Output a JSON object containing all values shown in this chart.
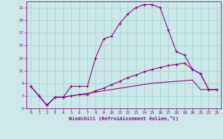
{
  "xlabel": "Windchill (Refroidissement éolien,°C)",
  "background_color": "#cce8e8",
  "grid_color": "#99cccc",
  "line_color": "#880088",
  "xlim": [
    -0.5,
    23.5
  ],
  "ylim": [
    5,
    22
  ],
  "yticks": [
    5,
    7,
    9,
    11,
    13,
    15,
    17,
    19,
    21
  ],
  "xticks": [
    0,
    1,
    2,
    3,
    4,
    5,
    6,
    7,
    8,
    9,
    10,
    11,
    12,
    13,
    14,
    15,
    16,
    17,
    18,
    19,
    20,
    21,
    22,
    23
  ],
  "series1_x": [
    0,
    1,
    2,
    3,
    4,
    5,
    6,
    7,
    8,
    9,
    10,
    11,
    12,
    13,
    14,
    15,
    16,
    17,
    18,
    19,
    20,
    21,
    22,
    23
  ],
  "series1_y": [
    8.5,
    7.0,
    5.5,
    6.8,
    6.8,
    8.5,
    8.5,
    8.5,
    13.0,
    16.0,
    16.5,
    18.5,
    20.0,
    21.0,
    21.5,
    21.5,
    21.0,
    17.5,
    14.0,
    13.5,
    11.2,
    10.5,
    8.0,
    8.0
  ],
  "series2_x": [
    0,
    1,
    2,
    3,
    4,
    5,
    6,
    7,
    8,
    9,
    10,
    11,
    12,
    13,
    14,
    15,
    16,
    17,
    18,
    19,
    20,
    21,
    22,
    23
  ],
  "series2_y": [
    8.5,
    7.0,
    5.5,
    6.8,
    6.8,
    7.0,
    7.2,
    7.2,
    7.8,
    8.2,
    8.8,
    9.3,
    9.9,
    10.3,
    10.8,
    11.2,
    11.5,
    11.8,
    12.0,
    12.2,
    11.2,
    10.5,
    8.0,
    8.0
  ],
  "series3_x": [
    0,
    1,
    2,
    3,
    4,
    5,
    6,
    7,
    8,
    9,
    10,
    11,
    12,
    13,
    14,
    15,
    16,
    17,
    18,
    19,
    20,
    21,
    22,
    23
  ],
  "series3_y": [
    8.5,
    7.0,
    5.5,
    6.8,
    6.8,
    7.0,
    7.2,
    7.4,
    7.6,
    7.8,
    8.0,
    8.2,
    8.4,
    8.6,
    8.8,
    9.0,
    9.1,
    9.2,
    9.3,
    9.4,
    9.5,
    8.0,
    8.0,
    8.0
  ]
}
